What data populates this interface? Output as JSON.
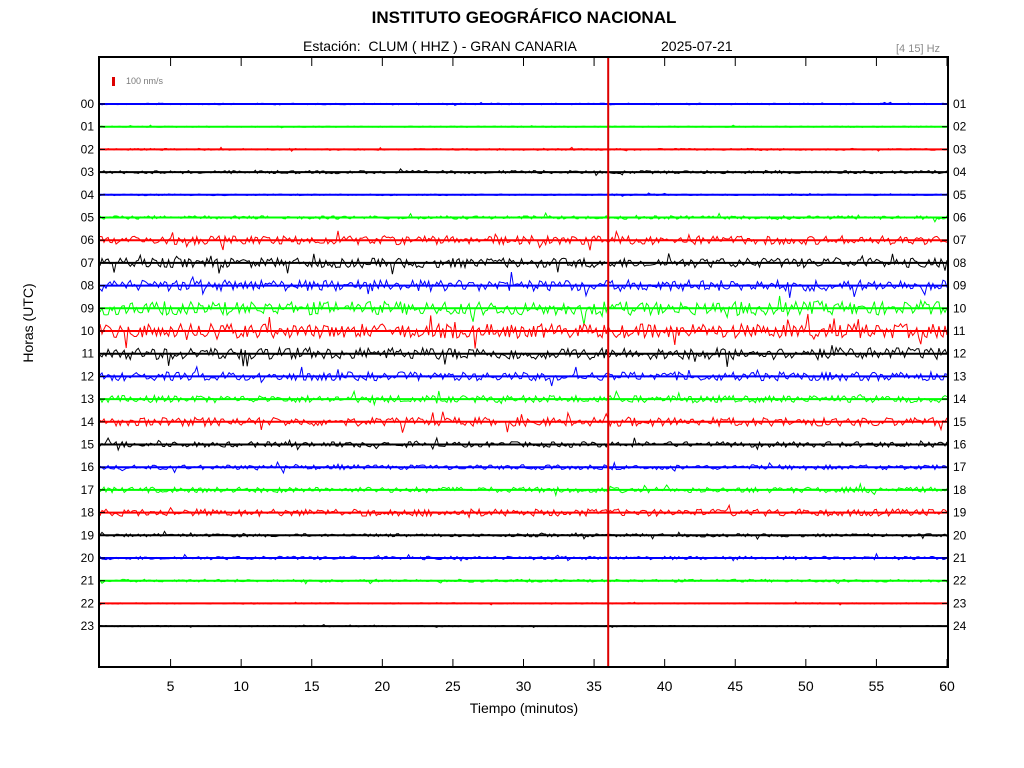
{
  "header": {
    "title": "INSTITUTO GEOGRÁFICO NACIONAL",
    "station_line": "Estación:  CLUM ( HHZ ) - GRAN CANARIA",
    "date": "2025-07-21",
    "filter": "[4 15] Hz"
  },
  "chart_data": {
    "type": "line",
    "title": "INSTITUTO GEOGRÁFICO NACIONAL",
    "xlabel": "Tiempo (minutos)",
    "ylabel": "Horas (UTC)",
    "xlim": [
      0,
      60
    ],
    "x_ticks": [
      5,
      10,
      15,
      20,
      25,
      30,
      35,
      40,
      45,
      50,
      55,
      60
    ],
    "left_labels": [
      "00",
      "01",
      "02",
      "03",
      "04",
      "05",
      "06",
      "07",
      "08",
      "09",
      "10",
      "11",
      "12",
      "13",
      "14",
      "15",
      "16",
      "17",
      "18",
      "19",
      "20",
      "21",
      "22",
      "23"
    ],
    "right_labels": [
      "01",
      "02",
      "03",
      "04",
      "05",
      "06",
      "07",
      "08",
      "09",
      "10",
      "11",
      "12",
      "13",
      "14",
      "15",
      "16",
      "17",
      "18",
      "19",
      "20",
      "21",
      "22",
      "23",
      "24"
    ],
    "trace_colors": [
      "#0000ff",
      "#00ff00",
      "#ff0000",
      "#000000"
    ],
    "current_time_marker_minute": 36,
    "marker_color": "#dd0000",
    "scale_bar_label": "100 nm/s",
    "grid": false,
    "series": [
      {
        "values": [
          0.1
        ]
      },
      {
        "values": [
          0.08
        ]
      },
      {
        "values": [
          0.12
        ]
      },
      {
        "values": [
          0.2
        ]
      },
      {
        "values": [
          0.1
        ]
      },
      {
        "values": [
          0.22
        ]
      },
      {
        "values": [
          0.55
        ]
      },
      {
        "values": [
          0.6
        ]
      },
      {
        "values": [
          0.7
        ]
      },
      {
        "values": [
          0.85
        ]
      },
      {
        "values": [
          0.9
        ]
      },
      {
        "values": [
          0.75
        ]
      },
      {
        "values": [
          0.55
        ]
      },
      {
        "values": [
          0.45
        ]
      },
      {
        "values": [
          0.55
        ]
      },
      {
        "values": [
          0.35
        ]
      },
      {
        "values": [
          0.3
        ]
      },
      {
        "values": [
          0.35
        ]
      },
      {
        "values": [
          0.45
        ]
      },
      {
        "values": [
          0.2
        ]
      },
      {
        "values": [
          0.22
        ]
      },
      {
        "values": [
          0.18
        ]
      },
      {
        "values": [
          0.08
        ]
      },
      {
        "values": [
          0.08
        ]
      }
    ]
  }
}
